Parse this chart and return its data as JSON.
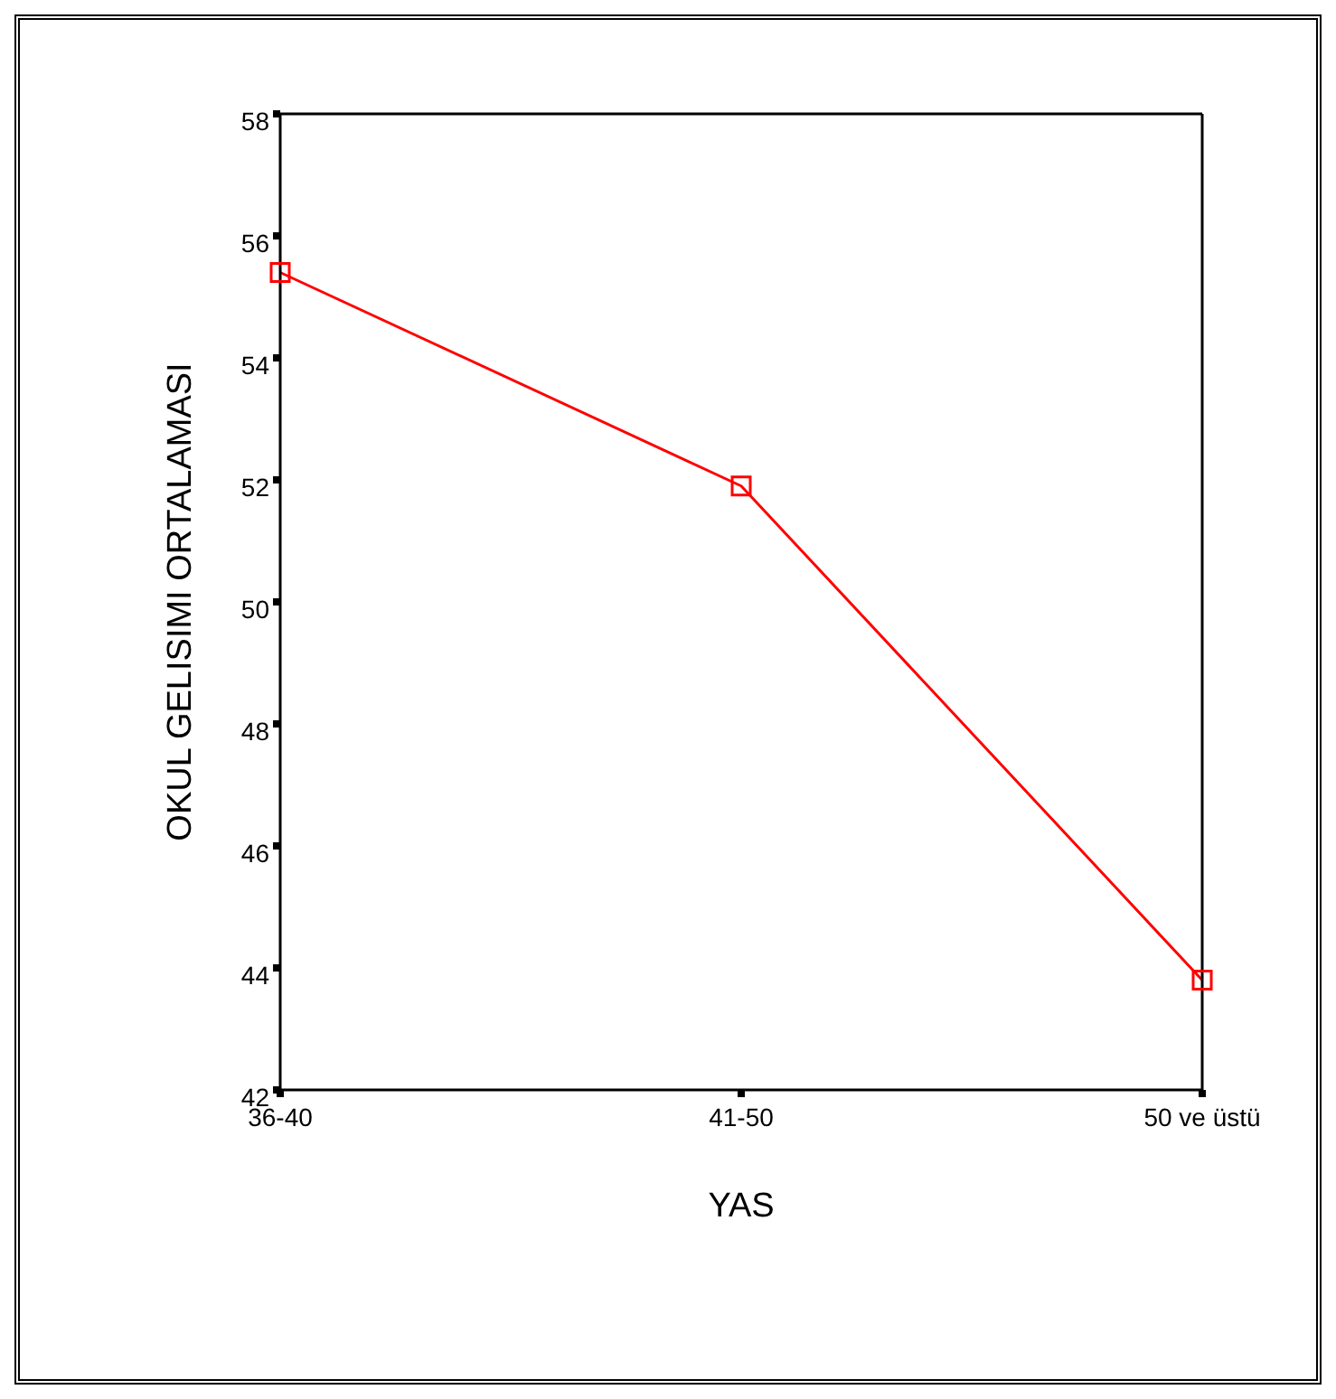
{
  "chart_data": {
    "type": "line",
    "xlabel": "YAS",
    "ylabel": "OKUL GELISIMI ORTALAMASI",
    "categories": [
      "36-40",
      "41-50",
      "50 ve üstü"
    ],
    "series": [
      {
        "color": "#ff0000",
        "values": [
          55.4,
          51.9,
          43.8
        ]
      }
    ],
    "ylim": [
      42,
      58
    ],
    "yticks": [
      42,
      44,
      46,
      48,
      50,
      52,
      54,
      56,
      58
    ],
    "marker": "square",
    "grid": false,
    "legend": false
  }
}
